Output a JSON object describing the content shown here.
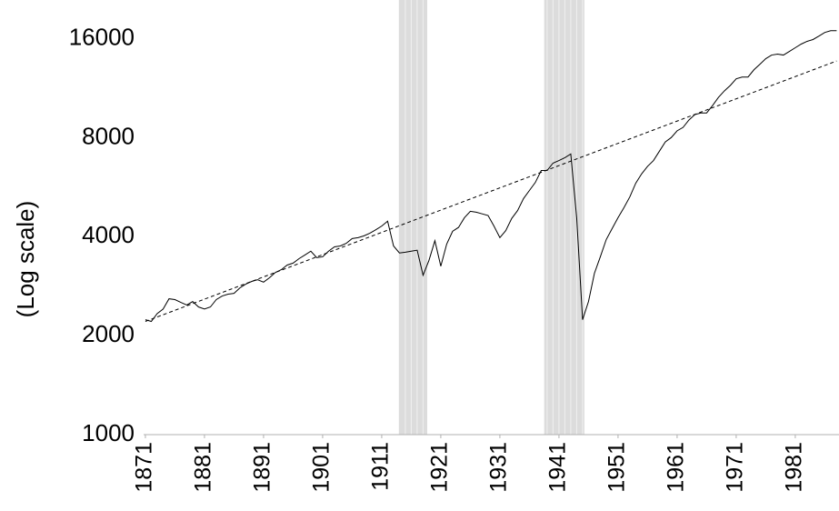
{
  "chart_data": {
    "type": "line",
    "y_label": "(Log scale)",
    "log_scale_y": true,
    "x": [
      1871,
      1872,
      1873,
      1874,
      1875,
      1876,
      1877,
      1878,
      1879,
      1880,
      1881,
      1882,
      1883,
      1884,
      1885,
      1886,
      1887,
      1888,
      1889,
      1890,
      1891,
      1892,
      1893,
      1894,
      1895,
      1896,
      1897,
      1898,
      1899,
      1900,
      1901,
      1902,
      1903,
      1904,
      1905,
      1906,
      1907,
      1908,
      1909,
      1910,
      1911,
      1912,
      1913,
      1914,
      1915,
      1916,
      1917,
      1918,
      1919,
      1920,
      1921,
      1922,
      1923,
      1924,
      1925,
      1926,
      1927,
      1928,
      1929,
      1930,
      1931,
      1932,
      1933,
      1934,
      1935,
      1936,
      1937,
      1938,
      1939,
      1940,
      1941,
      1942,
      1943,
      1944,
      1945,
      1946,
      1947,
      1948,
      1949,
      1950,
      1951,
      1952,
      1953,
      1954,
      1955,
      1956,
      1957,
      1958,
      1959,
      1960,
      1961,
      1962,
      1963,
      1964,
      1965,
      1966,
      1967,
      1968,
      1969,
      1970,
      1971,
      1972,
      1973,
      1974,
      1975,
      1976,
      1977,
      1978,
      1979,
      1980,
      1981,
      1982,
      1983,
      1984,
      1985,
      1986,
      1987,
      1988
    ],
    "series": [
      {
        "color": "#000000",
        "style": "solid",
        "values": [
          2237,
          2210,
          2335,
          2410,
          2590,
          2575,
          2525,
          2480,
          2540,
          2445,
          2410,
          2445,
          2575,
          2640,
          2675,
          2690,
          2795,
          2870,
          2925,
          2960,
          2910,
          3000,
          3115,
          3175,
          3280,
          3325,
          3430,
          3520,
          3615,
          3455,
          3475,
          3615,
          3725,
          3750,
          3820,
          3950,
          3975,
          4025,
          4100,
          4200,
          4310,
          4460,
          3750,
          3570,
          3590,
          3615,
          3640,
          3055,
          3390,
          3890,
          3255,
          3800,
          4155,
          4270,
          4570,
          4780,
          4750,
          4695,
          4640,
          4310,
          3975,
          4175,
          4545,
          4805,
          5225,
          5530,
          5850,
          6360,
          6360,
          6700,
          6820,
          6960,
          7140,
          4570,
          2237,
          2540,
          3095,
          3475,
          3920,
          4235,
          4570,
          4905,
          5290,
          5820,
          6215,
          6550,
          6820,
          7280,
          7770,
          8010,
          8400,
          8600,
          9060,
          9410,
          9520,
          9520,
          10030,
          10620,
          11110,
          11540,
          12090,
          12240,
          12240,
          12880,
          13380,
          13920,
          14280,
          14380,
          14280,
          14650,
          15030,
          15420,
          15720,
          15920,
          16310,
          16730,
          16940,
          16940
        ]
      },
      {
        "color": "#000000",
        "style": "dashed",
        "x": [
          1871,
          1988
        ],
        "values": [
          2210,
          13700
        ]
      }
    ],
    "shaded_periods": [
      [
        1913.9,
        1918.7
      ],
      [
        1938.5,
        1945.3
      ]
    ],
    "shade_color": "#dcdcdc",
    "xlim": [
      1870.7,
      1988.4
    ],
    "xticks": [
      1871,
      1881,
      1891,
      1901,
      1911,
      1921,
      1931,
      1941,
      1951,
      1961,
      1971,
      1981
    ],
    "ylim": [
      1000,
      21000
    ],
    "yticks": [
      1000,
      2000,
      4000,
      8000,
      16000
    ]
  }
}
